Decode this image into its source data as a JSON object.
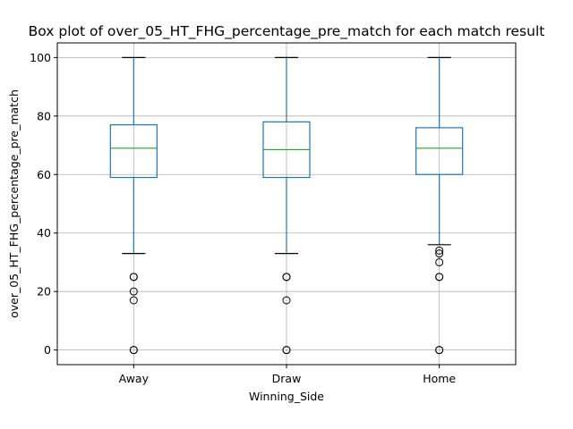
{
  "chart_data": {
    "type": "box",
    "title": "Box plot of over_05_HT_FHG_percentage_pre_match for each match result",
    "xlabel": "Winning_Side",
    "ylabel": "over_05_HT_FHG_percentage_pre_match",
    "categories": [
      "Away",
      "Draw",
      "Home"
    ],
    "ylim": [
      -5,
      105
    ],
    "yticks": [
      0,
      20,
      40,
      60,
      80,
      100
    ],
    "grid": true,
    "colors": {
      "box": "#1f77b4",
      "median": "#2ca02c",
      "cap": "#000000",
      "grid": "#b0b0b0"
    },
    "boxes": [
      {
        "category": "Away",
        "whisker_low": 33,
        "q1": 59,
        "median": 69,
        "q3": 77,
        "whisker_high": 100,
        "outliers": [
          25,
          25,
          20,
          17,
          0,
          0
        ]
      },
      {
        "category": "Draw",
        "whisker_low": 33,
        "q1": 59,
        "median": 68.5,
        "q3": 78,
        "whisker_high": 100,
        "outliers": [
          25,
          25,
          17,
          0,
          0
        ]
      },
      {
        "category": "Home",
        "whisker_low": 36,
        "q1": 60,
        "median": 69,
        "q3": 76,
        "whisker_high": 100,
        "outliers": [
          34,
          33,
          30,
          25,
          25,
          0,
          0
        ]
      }
    ]
  }
}
